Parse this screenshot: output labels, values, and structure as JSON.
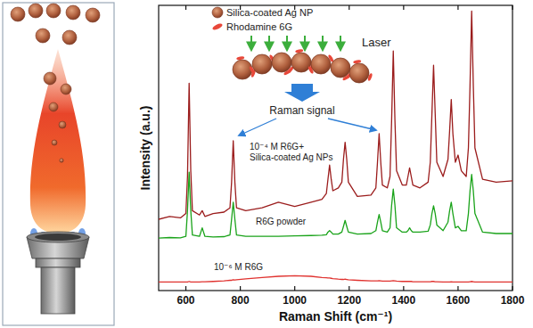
{
  "chart_data": {
    "type": "line",
    "x_label": "Raman Shift (cm⁻¹)",
    "y_label": "Intensity (a.u.)",
    "xlim": [
      500,
      1800
    ],
    "xticks": [
      600,
      800,
      1000,
      1200,
      1400,
      1600,
      1800
    ],
    "ylim": [
      0,
      100
    ],
    "tick_labels": "x",
    "annotations": [
      "Silica-coated Ag NP",
      "Rhodamine 6G",
      "Laser",
      "Raman signal"
    ],
    "x": [
      500,
      540,
      580,
      600,
      606,
      612,
      618,
      624,
      650,
      660,
      670,
      700,
      740,
      762,
      768,
      774,
      780,
      786,
      820,
      880,
      940,
      1000,
      1060,
      1100,
      1116,
      1122,
      1128,
      1134,
      1140,
      1160,
      1173,
      1179,
      1185,
      1191,
      1197,
      1230,
      1280,
      1298,
      1304,
      1310,
      1316,
      1322,
      1340,
      1350,
      1356,
      1362,
      1368,
      1374,
      1395,
      1410,
      1416,
      1422,
      1428,
      1434,
      1460,
      1490,
      1498,
      1504,
      1510,
      1516,
      1522,
      1545,
      1563,
      1569,
      1575,
      1581,
      1590,
      1600,
      1612,
      1630,
      1638,
      1644,
      1650,
      1656,
      1662,
      1690,
      1740,
      1800
    ],
    "series": [
      {
        "name": "10⁻⁴ M R6G+ Silica-coated Ag NPs",
        "color": "#9b1c1c",
        "values": [
          25,
          26,
          25.5,
          27,
          40,
          72.7,
          42,
          28,
          26.5,
          28,
          26,
          27,
          27.5,
          29,
          38,
          52.5,
          38,
          29,
          28,
          29,
          31,
          29.5,
          31,
          32,
          34,
          39,
          44,
          39,
          35,
          36,
          38,
          46,
          52,
          46,
          38,
          33,
          33.5,
          36,
          45,
          55,
          45,
          37,
          36,
          40,
          60,
          84,
          60,
          42,
          37,
          37,
          40,
          43,
          40,
          37,
          36,
          38,
          45,
          62,
          79,
          62,
          45,
          40,
          46,
          56,
          67,
          55,
          45,
          47.5,
          42,
          40,
          50,
          72,
          98,
          72,
          50,
          39,
          38,
          38.5
        ]
      },
      {
        "name": "R6G powder",
        "color": "#1aa31a",
        "values": [
          18.4,
          18.6,
          18.5,
          19,
          28,
          41.5,
          28,
          19.5,
          19,
          22,
          19,
          18.8,
          18.9,
          19.5,
          25,
          31,
          25,
          19.5,
          19,
          19,
          19,
          19.2,
          19.3,
          19.4,
          19.6,
          20.5,
          21,
          20.5,
          19.8,
          19.8,
          20.5,
          22.5,
          24.6,
          22.5,
          20.5,
          19.8,
          20,
          21,
          24,
          26.7,
          24,
          21,
          20.5,
          22,
          30,
          35.6,
          30,
          22,
          20.5,
          20.5,
          21,
          22,
          21,
          20.5,
          20.5,
          20.8,
          23,
          27,
          29.7,
          27,
          23,
          21,
          24,
          28,
          31,
          27,
          22,
          22.5,
          21,
          21,
          27,
          35,
          40.7,
          35,
          27,
          20.5,
          20,
          20
        ]
      },
      {
        "name": "10⁻⁶ M R6G",
        "color": "#e0322f",
        "values": [
          3,
          3,
          3,
          3,
          3,
          3.2,
          3,
          3,
          3,
          3.1,
          3.1,
          3.2,
          3.4,
          3.6,
          3.6,
          3.8,
          3.7,
          3.8,
          4.1,
          4.6,
          5,
          5.2,
          5,
          4.6,
          4.5,
          4.4,
          4.4,
          4.3,
          4.2,
          4,
          3.9,
          3.9,
          4,
          3.9,
          3.8,
          3.6,
          3.4,
          3.4,
          3.4,
          3.5,
          3.4,
          3.3,
          3.3,
          3.3,
          3.4,
          3.5,
          3.4,
          3.3,
          3.2,
          3.2,
          3.2,
          3.2,
          3.2,
          3.1,
          3.1,
          3.1,
          3.1,
          3.2,
          3.2,
          3.1,
          3.1,
          3,
          3,
          3,
          3.1,
          3,
          3,
          3,
          3,
          3,
          3,
          3.1,
          3.2,
          3.1,
          3,
          3,
          3,
          3
        ]
      }
    ]
  }
}
